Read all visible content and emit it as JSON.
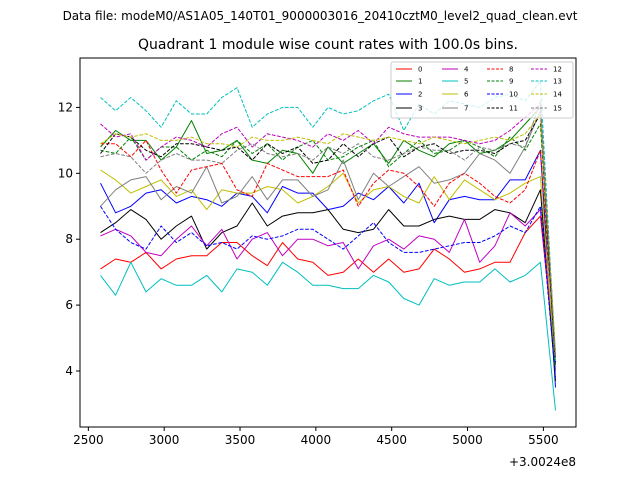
{
  "header_text": "Data file: modeM0/AS1A05_140T01_9000003016_20410cztM0_level2_quad_clean.evt",
  "chart_data": {
    "type": "line",
    "title": "Quadrant 1 module wise count rates with 100.0s bins.",
    "xlabel": "",
    "ylabel": "",
    "x_offset_label": "+3.0024e8",
    "xlim": [
      2445,
      5715
    ],
    "ylim": [
      2.3,
      13.5
    ],
    "x_ticks": [
      2500,
      3000,
      3500,
      4000,
      4500,
      5000,
      5500
    ],
    "x_tick_labels": [
      "2500",
      "3000",
      "3500",
      "4000",
      "4500",
      "5000",
      "5500"
    ],
    "y_ticks": [
      4,
      6,
      8,
      10,
      12
    ],
    "y_tick_labels": [
      "4",
      "6",
      "8",
      "10",
      "12"
    ],
    "legend_position": "top-right",
    "x": [
      2580,
      2680,
      2780,
      2880,
      2980,
      3080,
      3180,
      3280,
      3380,
      3480,
      3580,
      3680,
      3780,
      3880,
      3980,
      4080,
      4180,
      4280,
      4380,
      4480,
      4580,
      4680,
      4780,
      4880,
      4980,
      5080,
      5180,
      5280,
      5380,
      5480,
      5580
    ],
    "series": [
      {
        "name": "0",
        "color": "#ff0000",
        "dash": "solid",
        "values": [
          7.1,
          7.4,
          7.3,
          7.6,
          7.1,
          7.4,
          7.5,
          7.5,
          7.9,
          7.9,
          7.5,
          7.2,
          7.9,
          7.4,
          7.3,
          6.9,
          7.0,
          7.4,
          7.0,
          7.4,
          7.0,
          7.1,
          7.7,
          7.4,
          7.0,
          7.1,
          7.3,
          7.3,
          8.2,
          8.7,
          4.3
        ]
      },
      {
        "name": "1",
        "color": "#008000",
        "dash": "solid",
        "values": [
          10.8,
          11.3,
          11.0,
          11.0,
          10.4,
          10.8,
          11.6,
          10.6,
          10.7,
          11.0,
          10.4,
          10.3,
          10.7,
          10.6,
          10.0,
          10.8,
          10.3,
          10.6,
          10.9,
          10.3,
          11.0,
          10.7,
          10.5,
          10.9,
          11.0,
          10.6,
          10.7,
          11.0,
          11.5,
          12.0,
          4.0
        ]
      },
      {
        "name": "2",
        "color": "#0000ff",
        "dash": "solid",
        "values": [
          9.7,
          8.8,
          9.0,
          9.4,
          9.5,
          9.1,
          9.3,
          9.2,
          9.0,
          9.4,
          9.3,
          8.8,
          9.6,
          9.4,
          9.4,
          8.9,
          9.0,
          9.4,
          9.2,
          9.6,
          9.1,
          9.7,
          8.5,
          9.2,
          9.3,
          9.2,
          9.2,
          9.8,
          9.8,
          10.7,
          3.5
        ]
      },
      {
        "name": "3",
        "color": "#000000",
        "dash": "solid",
        "values": [
          8.2,
          8.5,
          8.9,
          8.6,
          8.0,
          8.4,
          8.7,
          7.7,
          8.2,
          8.4,
          9.1,
          8.4,
          8.7,
          8.8,
          8.8,
          8.9,
          8.3,
          8.2,
          8.3,
          8.9,
          8.4,
          8.4,
          8.6,
          8.7,
          8.6,
          8.6,
          8.9,
          8.8,
          8.5,
          9.5,
          3.7
        ]
      },
      {
        "name": "4",
        "color": "#bf00bf",
        "dash": "solid",
        "values": [
          8.1,
          8.3,
          8.1,
          7.6,
          7.5,
          8.0,
          8.4,
          7.8,
          8.3,
          7.4,
          8.0,
          8.2,
          7.5,
          8.0,
          8.0,
          7.8,
          7.9,
          7.1,
          7.8,
          8.0,
          7.7,
          8.1,
          8.0,
          7.6,
          8.6,
          7.3,
          7.8,
          8.8,
          8.4,
          8.9,
          4.4
        ]
      },
      {
        "name": "5",
        "color": "#00bfbf",
        "dash": "solid",
        "values": [
          6.9,
          6.3,
          7.3,
          6.4,
          6.8,
          6.6,
          6.6,
          6.9,
          6.4,
          7.1,
          7.0,
          6.6,
          7.3,
          7.0,
          6.6,
          6.6,
          6.5,
          6.5,
          6.9,
          6.7,
          6.2,
          6.0,
          6.8,
          6.6,
          6.7,
          6.7,
          7.1,
          6.7,
          6.9,
          7.3,
          2.8
        ]
      },
      {
        "name": "6",
        "color": "#bfbf00",
        "dash": "solid",
        "values": [
          10.1,
          9.8,
          9.4,
          9.6,
          9.8,
          9.3,
          9.5,
          8.9,
          9.5,
          9.4,
          9.4,
          9.6,
          9.5,
          9.1,
          9.3,
          9.6,
          10.0,
          9.1,
          9.5,
          9.6,
          9.3,
          9.1,
          9.9,
          9.2,
          9.8,
          9.5,
          9.2,
          9.4,
          9.7,
          9.9,
          4.1
        ]
      },
      {
        "name": "7",
        "color": "#808080",
        "dash": "solid",
        "values": [
          9.0,
          9.5,
          9.8,
          9.9,
          9.2,
          9.6,
          9.4,
          10.2,
          9.1,
          9.3,
          9.9,
          9.2,
          9.8,
          9.8,
          9.3,
          9.5,
          10.4,
          9.2,
          10.0,
          9.6,
          9.9,
          10.2,
          9.7,
          9.8,
          10.0,
          10.6,
          10.4,
          10.0,
          10.8,
          11.9,
          4.0
        ]
      },
      {
        "name": "8",
        "color": "#ff0000",
        "dash": "dashed",
        "values": [
          10.9,
          10.9,
          10.5,
          11.0,
          10.1,
          9.4,
          10.1,
          10.2,
          10.3,
          9.5,
          9.3,
          10.3,
          10.1,
          9.9,
          9.9,
          9.9,
          10.1,
          9.0,
          9.7,
          10.1,
          10.0,
          9.6,
          9.0,
          9.7,
          10.0,
          9.7,
          9.3,
          9.1,
          9.5,
          10.7,
          4.5
        ]
      },
      {
        "name": "9",
        "color": "#008000",
        "dash": "dashed",
        "values": [
          10.7,
          10.6,
          11.1,
          10.4,
          10.8,
          10.8,
          10.4,
          10.7,
          10.5,
          11.0,
          10.6,
          10.9,
          10.4,
          10.8,
          11.0,
          10.4,
          10.5,
          10.8,
          11.0,
          10.2,
          10.6,
          11.0,
          10.6,
          10.7,
          11.0,
          10.8,
          10.5,
          11.1,
          10.7,
          11.5,
          4.2
        ]
      },
      {
        "name": "10",
        "color": "#0000ff",
        "dash": "dashed",
        "values": [
          9.0,
          8.3,
          7.9,
          7.7,
          8.4,
          7.9,
          8.2,
          7.8,
          7.9,
          7.7,
          8.1,
          8.0,
          8.1,
          8.3,
          8.3,
          8.0,
          7.7,
          8.1,
          8.5,
          7.9,
          7.6,
          7.6,
          7.7,
          7.8,
          7.9,
          7.9,
          8.1,
          8.4,
          8.2,
          9.0,
          3.8
        ]
      },
      {
        "name": "11",
        "color": "#000000",
        "dash": "dashed",
        "values": [
          10.6,
          11.2,
          11.1,
          10.7,
          10.5,
          10.9,
          10.9,
          10.8,
          10.7,
          10.8,
          10.4,
          10.9,
          10.6,
          10.8,
          10.3,
          10.4,
          10.9,
          10.5,
          10.9,
          11.1,
          10.5,
          10.8,
          10.9,
          10.6,
          10.7,
          10.7,
          10.6,
          10.9,
          11.0,
          11.8,
          4.2
        ]
      },
      {
        "name": "12",
        "color": "#bf00bf",
        "dash": "dashed",
        "values": [
          11.5,
          11.1,
          11.2,
          10.4,
          10.8,
          11.1,
          11.0,
          10.8,
          11.2,
          11.4,
          10.8,
          11.2,
          11.1,
          11.0,
          10.8,
          11.2,
          11.0,
          11.3,
          10.9,
          11.4,
          11.2,
          11.1,
          11.1,
          11.1,
          11.0,
          10.9,
          11.0,
          11.3,
          11.7,
          12.1,
          4.5
        ]
      },
      {
        "name": "13",
        "color": "#00bfbf",
        "dash": "dashed",
        "values": [
          12.3,
          11.9,
          12.3,
          11.9,
          11.4,
          12.2,
          11.8,
          11.8,
          12.3,
          12.6,
          11.4,
          11.8,
          12.0,
          12.0,
          11.4,
          12.0,
          11.8,
          11.9,
          12.2,
          12.4,
          11.3,
          12.1,
          11.8,
          12.2,
          12.1,
          12.0,
          12.3,
          12.4,
          12.2,
          12.8,
          4.3
        ]
      },
      {
        "name": "14",
        "color": "#bfbf00",
        "dash": "dashed",
        "values": [
          10.9,
          11.2,
          11.1,
          11.2,
          11.0,
          11.0,
          11.1,
          10.9,
          10.9,
          10.8,
          11.1,
          11.0,
          11.0,
          11.1,
          11.0,
          10.9,
          11.2,
          11.1,
          11.0,
          11.1,
          11.0,
          10.9,
          11.1,
          11.0,
          10.9,
          11.0,
          11.1,
          11.0,
          11.2,
          11.8,
          4.6
        ]
      },
      {
        "name": "15",
        "color": "#808080",
        "dash": "dashed",
        "values": [
          10.5,
          10.6,
          10.5,
          10.0,
          10.4,
          10.6,
          10.4,
          10.4,
          10.3,
          10.7,
          10.9,
          10.6,
          10.5,
          10.6,
          10.4,
          10.8,
          10.6,
          10.9,
          10.5,
          10.4,
          10.6,
          10.8,
          10.7,
          10.7,
          10.4,
          10.8,
          10.7,
          10.9,
          10.8,
          12.2,
          4.4
        ]
      }
    ]
  }
}
